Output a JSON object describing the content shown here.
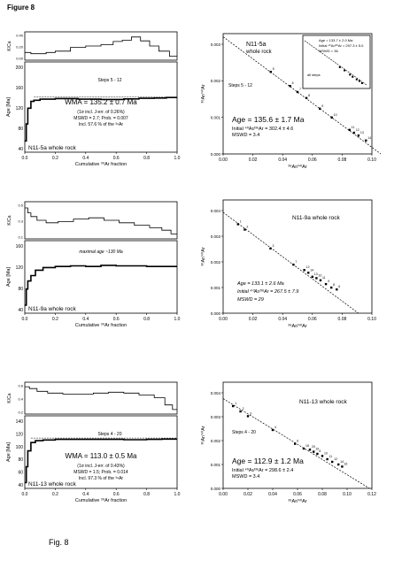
{
  "figure_title": "Figure 8",
  "figure_caption": "Fig. 8",
  "chart_data": [
    {
      "id": "p1",
      "type": "line",
      "kca": {
        "ylabel": "K/Ca",
        "yticks": [
          "0.40",
          "0.20",
          "0.00"
        ],
        "ylim": [
          0,
          0.44
        ],
        "steps": [
          [
            0,
            0.12
          ],
          [
            0.04,
            0.1
          ],
          [
            0.08,
            0.1
          ],
          [
            0.14,
            0.12
          ],
          [
            0.2,
            0.14
          ],
          [
            0.3,
            0.2
          ],
          [
            0.4,
            0.22
          ],
          [
            0.5,
            0.24
          ],
          [
            0.58,
            0.29
          ],
          [
            0.64,
            0.31
          ],
          [
            0.7,
            0.36
          ],
          [
            0.76,
            0.3
          ],
          [
            0.82,
            0.22
          ],
          [
            0.88,
            0.14
          ],
          [
            0.95,
            0.06
          ],
          [
            1.0,
            0.06
          ]
        ]
      },
      "age": {
        "ylabel": "Age [Ma]",
        "yticks": [
          "200",
          "160",
          "120",
          "80",
          "40"
        ],
        "ylim": [
          40,
          200
        ],
        "steps": [
          [
            0,
            60
          ],
          [
            0.01,
            90
          ],
          [
            0.02,
            118
          ],
          [
            0.04,
            130
          ],
          [
            0.06,
            132
          ],
          [
            0.1,
            134
          ],
          [
            0.2,
            135
          ],
          [
            0.35,
            134
          ],
          [
            0.5,
            133.5
          ],
          [
            0.65,
            134.5
          ],
          [
            0.75,
            135.5
          ],
          [
            0.85,
            136
          ],
          [
            0.93,
            137
          ],
          [
            1.0,
            137
          ]
        ],
        "plateau_value": 135.2,
        "plateau_range": [
          0.06,
          1.0
        ]
      },
      "xlabel": "Cumulative ³⁹Ar fraction",
      "xticks": [
        "0.0",
        "0.2",
        "0.4",
        "0.6",
        "0.8",
        "1.0"
      ],
      "steps_label": "Steps 5 - 12",
      "ann_main": "WMA = 135.2 ± 0.7 Ma",
      "ann_lines": [
        "(1σ incl. J-err. of 0.26%)",
        "MSWD = 2.7; Prob. = 0.007",
        "Incl. 57.6 % of the ³⁹Ar"
      ],
      "sample": "N11-5a whole rock"
    },
    {
      "id": "i1",
      "type": "scatter",
      "title": "N11-5a",
      "title2": "whole rock",
      "ylabel": "³⁶Ar/⁴⁰Ar",
      "xlabel": "³⁹Ar/⁴⁰Ar",
      "xlim": [
        0,
        0.1
      ],
      "ylim": [
        0,
        0.0034
      ],
      "xticks": [
        "0.00",
        "0.02",
        "0.04",
        "0.06",
        "0.08",
        "0.10"
      ],
      "yticks": [
        "0.000",
        "0.001",
        "0.002",
        "0.003"
      ],
      "line": [
        [
          0,
          0.00331
        ],
        [
          0.106,
          0
        ]
      ],
      "points": [
        [
          0.032,
          0.00232
        ],
        [
          0.045,
          0.00192
        ],
        [
          0.05,
          0.00175
        ],
        [
          0.056,
          0.00158
        ],
        [
          0.065,
          0.00128
        ],
        [
          0.073,
          0.00103
        ],
        [
          0.085,
          0.00068
        ],
        [
          0.088,
          0.0006
        ],
        [
          0.091,
          0.00052
        ],
        [
          0.096,
          0.00038
        ]
      ],
      "point_labels": [
        "5",
        "6",
        "7",
        "8",
        "9",
        "10",
        "11",
        "12",
        "13",
        "14"
      ],
      "steps_label": "Steps 5 - 12",
      "ann_main": "Age = 135.6 ± 1.7 Ma",
      "ann_lines": [
        "Initial ⁴⁰Ar/³⁶Ar = 302.4 ± 4.6",
        "MSWD = 3.4"
      ],
      "inset": {
        "lines": [
          "Age = 133.7 ± 2.0 Ma",
          "Initial ⁴⁰Ar/³⁶Ar = 297.3 ± 5.0",
          "MSWD = 36"
        ],
        "label": "all steps"
      }
    },
    {
      "id": "p2",
      "type": "line",
      "kca": {
        "ylabel": "K/Ca",
        "yticks": [
          "0.5",
          "0.3",
          "0.1"
        ],
        "ylim": [
          0,
          0.6
        ],
        "steps": [
          [
            0,
            0.5
          ],
          [
            0.02,
            0.42
          ],
          [
            0.04,
            0.36
          ],
          [
            0.08,
            0.3
          ],
          [
            0.14,
            0.26
          ],
          [
            0.22,
            0.28
          ],
          [
            0.32,
            0.32
          ],
          [
            0.42,
            0.34
          ],
          [
            0.52,
            0.3
          ],
          [
            0.62,
            0.26
          ],
          [
            0.72,
            0.22
          ],
          [
            0.82,
            0.18
          ],
          [
            0.9,
            0.14
          ],
          [
            0.96,
            0.08
          ],
          [
            1.0,
            0.08
          ]
        ]
      },
      "age": {
        "ylabel": "Age [Ma]",
        "yticks": [
          "160",
          "120",
          "80",
          "40"
        ],
        "ylim": [
          40,
          175
        ],
        "steps": [
          [
            0,
            55
          ],
          [
            0.01,
            85
          ],
          [
            0.02,
            100
          ],
          [
            0.04,
            110
          ],
          [
            0.07,
            120
          ],
          [
            0.12,
            125
          ],
          [
            0.2,
            127
          ],
          [
            0.3,
            128
          ],
          [
            0.4,
            127
          ],
          [
            0.5,
            129
          ],
          [
            0.6,
            128
          ],
          [
            0.7,
            128
          ],
          [
            0.8,
            127
          ],
          [
            0.9,
            127
          ],
          [
            1.0,
            128
          ]
        ]
      },
      "xlabel": "Cumulative ³⁹Ar fraction",
      "xticks": [
        "0.0",
        "0.2",
        "0.4",
        "0.6",
        "0.8",
        "1.0"
      ],
      "ann_italic": "maximal age ~130 Ma",
      "sample": "N11-9a whole rock"
    },
    {
      "id": "i2",
      "type": "scatter",
      "title": "N11-9a whole rock",
      "ylabel": "³⁶Ar/⁴⁰Ar",
      "xlabel": "³⁹Ar/⁴⁰Ar",
      "xlim": [
        0,
        0.11
      ],
      "ylim": [
        0,
        0.0042
      ],
      "xticks": [
        "0.00",
        "0.02",
        "0.04",
        "0.06",
        "0.08",
        "0.10"
      ],
      "yticks": [
        "0.000",
        "0.001",
        "0.002",
        "0.003",
        "0.004"
      ],
      "line": [
        [
          0,
          0.00374
        ],
        [
          0.1,
          0
        ]
      ],
      "points": [
        [
          0.011,
          0.0033
        ],
        [
          0.016,
          0.0031
        ],
        [
          0.035,
          0.0024
        ],
        [
          0.052,
          0.0018
        ],
        [
          0.06,
          0.0016
        ],
        [
          0.063,
          0.0015
        ],
        [
          0.066,
          0.00135
        ],
        [
          0.069,
          0.0013
        ],
        [
          0.072,
          0.00122
        ],
        [
          0.076,
          0.00108
        ],
        [
          0.08,
          0.00095
        ],
        [
          0.084,
          0.00088
        ]
      ],
      "point_labels": [
        "1",
        "2",
        "3",
        "7",
        "12",
        "14",
        "13",
        "10",
        "11",
        "9",
        "8",
        "6"
      ],
      "ann_lines": [
        "Age = 133.1 ± 2.6 Ma",
        "Initial ⁴⁰Ar/³⁶Ar = 267.5 ± 7.9",
        "MSWD = 29"
      ]
    },
    {
      "id": "p3",
      "type": "line",
      "kca": {
        "ylabel": "K/Ca",
        "yticks": [
          "0.6",
          "0.4",
          "0.2"
        ],
        "ylim": [
          0,
          0.7
        ],
        "steps": [
          [
            0,
            0.6
          ],
          [
            0.03,
            0.56
          ],
          [
            0.08,
            0.5
          ],
          [
            0.15,
            0.46
          ],
          [
            0.25,
            0.44
          ],
          [
            0.35,
            0.44
          ],
          [
            0.45,
            0.46
          ],
          [
            0.55,
            0.48
          ],
          [
            0.65,
            0.46
          ],
          [
            0.75,
            0.42
          ],
          [
            0.85,
            0.36
          ],
          [
            0.92,
            0.2
          ],
          [
            0.97,
            0.1
          ],
          [
            1.0,
            0.1
          ]
        ]
      },
      "age": {
        "ylabel": "Age [Ma]",
        "yticks": [
          "140",
          "120",
          "100",
          "80",
          "60",
          "40"
        ],
        "ylim": [
          36,
          150
        ],
        "steps": [
          [
            0,
            45
          ],
          [
            0.01,
            70
          ],
          [
            0.02,
            95
          ],
          [
            0.04,
            108
          ],
          [
            0.07,
            111
          ],
          [
            0.12,
            112
          ],
          [
            0.2,
            113
          ],
          [
            0.35,
            113
          ],
          [
            0.5,
            113
          ],
          [
            0.65,
            112.5
          ],
          [
            0.8,
            113
          ],
          [
            0.9,
            113.5
          ],
          [
            1.0,
            113
          ]
        ],
        "plateau_value": 113.0,
        "plateau_range": [
          0.04,
          1.0
        ]
      },
      "xlabel": "Cumulative ³⁹Ar fraction",
      "xticks": [
        "0.0",
        "0.2",
        "0.4",
        "0.6",
        "0.8",
        "1.0"
      ],
      "steps_label": "Steps 4 - 20",
      "ann_main": "WMA = 113.0 ± 0.5 Ma",
      "ann_lines": [
        "(1σ incl. J-err. of 0.43%)",
        "MSWD = 1.5; Prob. = 0.014",
        "Incl. 97.3 % of the ³⁹Ar"
      ],
      "sample": "N11-13 whole rock"
    },
    {
      "id": "i3",
      "type": "scatter",
      "title": "N11-13 whole rock",
      "ylabel": "³⁶Ar/⁴⁰Ar",
      "xlabel": "³⁹Ar/⁴⁰Ar",
      "xlim": [
        0,
        0.12
      ],
      "ylim": [
        0,
        0.004
      ],
      "xticks": [
        "0.00",
        "0.02",
        "0.04",
        "0.06",
        "0.08",
        "0.10",
        "0.12"
      ],
      "yticks": [
        "0.000",
        "0.001",
        "0.002",
        "0.003",
        "0.004"
      ],
      "line": [
        [
          0,
          0.00338
        ],
        [
          0.118,
          0
        ]
      ],
      "points": [
        [
          0.008,
          0.0031
        ],
        [
          0.014,
          0.0029
        ],
        [
          0.02,
          0.00272
        ],
        [
          0.04,
          0.0022
        ],
        [
          0.058,
          0.00168
        ],
        [
          0.065,
          0.0015
        ],
        [
          0.07,
          0.00146
        ],
        [
          0.073,
          0.00138
        ],
        [
          0.076,
          0.0013
        ],
        [
          0.08,
          0.00122
        ],
        [
          0.084,
          0.0011
        ],
        [
          0.088,
          0.001
        ],
        [
          0.093,
          0.0009
        ],
        [
          0.096,
          0.00082
        ]
      ],
      "point_labels": [
        "1",
        "2",
        "3",
        "4",
        "6",
        "18",
        "20",
        "19",
        "8",
        "10",
        "11",
        "12",
        "14",
        "16"
      ],
      "steps_label": "Steps 4 - 20",
      "ann_main": "Age = 112.9 ± 1.2 Ma",
      "ann_lines": [
        "Initial ⁴⁰Ar/³⁶Ar = 298.6 ± 2.4",
        "MSWD = 3.4"
      ]
    }
  ]
}
